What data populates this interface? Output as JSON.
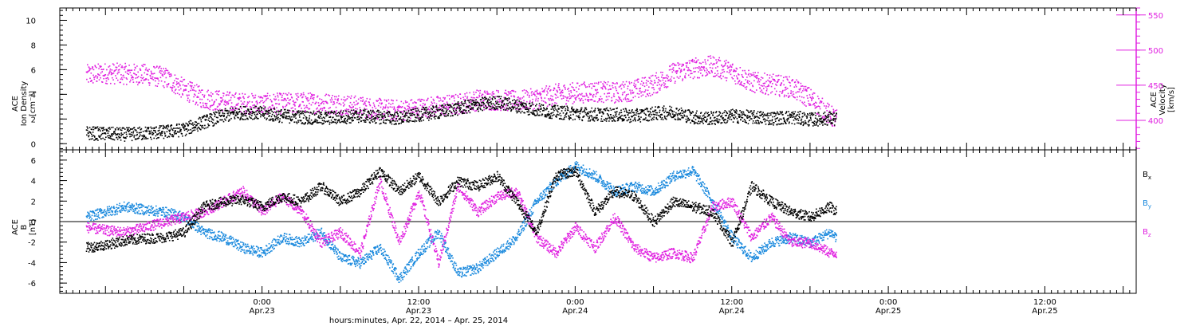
{
  "chart_data": [
    {
      "type": "scatter",
      "panel": "top",
      "left_axis": {
        "label_lines": [
          "ACE",
          "Ion Density",
          "[cm⁻³]"
        ],
        "ylim": [
          -0.5,
          11
        ],
        "ticks": [
          0,
          2,
          4,
          6,
          8,
          10
        ]
      },
      "right_axis": {
        "label_lines": [
          "ACE",
          "Velocity",
          "[km/s]"
        ],
        "ylim": [
          358,
          560
        ],
        "ticks": [
          400,
          450,
          500,
          550
        ],
        "color": "#e020e0"
      },
      "series": [
        {
          "name": "Ion Density",
          "axis": "left",
          "color": "#000000",
          "x": [
            -27,
            -24,
            -21,
            -18,
            -15,
            -12,
            -9,
            -6,
            -4,
            -2,
            0,
            3,
            6,
            9,
            12,
            15,
            18,
            21,
            24,
            27,
            30,
            33,
            36,
            39,
            42,
            45,
            48,
            51,
            54,
            57,
            60,
            63,
            66,
            69,
            72,
            75,
            78,
            81,
            84,
            87,
            88
          ],
          "y": [
            0.9,
            0.85,
            0.8,
            0.9,
            1.0,
            1.2,
            1.8,
            2.3,
            2.5,
            2.6,
            2.5,
            2.3,
            2.2,
            2.1,
            2.2,
            2.3,
            2.2,
            2.1,
            2.4,
            2.6,
            2.9,
            3.2,
            3.4,
            3.1,
            2.8,
            2.6,
            2.5,
            2.4,
            2.4,
            2.3,
            2.5,
            2.6,
            2.2,
            2.1,
            2.3,
            2.2,
            2.1,
            2.2,
            2.0,
            2.1,
            2.0
          ]
        },
        {
          "name": "Velocity",
          "axis": "right",
          "color": "#e020e0",
          "x": [
            -27,
            -24,
            -21,
            -18,
            -15,
            -12,
            -9,
            -6,
            -3,
            0,
            3,
            6,
            9,
            12,
            15,
            18,
            21,
            24,
            27,
            30,
            33,
            36,
            39,
            42,
            45,
            48,
            51,
            54,
            57,
            60,
            63,
            66,
            69,
            72,
            75,
            78,
            81,
            84,
            87,
            88
          ],
          "y": [
            465,
            468,
            467,
            466,
            462,
            445,
            432,
            428,
            425,
            424,
            425,
            426,
            425,
            424,
            420,
            417,
            415,
            418,
            421,
            424,
            430,
            430,
            428,
            432,
            438,
            440,
            442,
            440,
            444,
            452,
            468,
            475,
            478,
            470,
            455,
            452,
            448,
            432,
            408,
            402
          ]
        }
      ]
    },
    {
      "type": "scatter",
      "panel": "bottom",
      "left_axis": {
        "label_lines": [
          "ACE",
          "B",
          "[nT]"
        ],
        "ylim": [
          -7,
          7
        ],
        "ticks": [
          -6,
          -4,
          -2,
          0,
          2,
          4,
          6
        ]
      },
      "zero_line": true,
      "legend": [
        {
          "label": "B",
          "sub": "x",
          "color": "#000000"
        },
        {
          "label": "B",
          "sub": "y",
          "color": "#1888dd"
        },
        {
          "label": "B",
          "sub": "z",
          "color": "#e020e0"
        }
      ],
      "series": [
        {
          "name": "Bx",
          "color": "#000000",
          "x": [
            -27,
            -24,
            -21,
            -18,
            -15,
            -12,
            -9,
            -6,
            -3,
            0,
            3,
            6,
            9,
            12,
            15,
            18,
            21,
            24,
            27,
            30,
            33,
            36,
            39,
            42,
            45,
            48,
            51,
            54,
            57,
            60,
            63,
            66,
            69,
            72,
            75,
            78,
            81,
            84,
            87,
            88
          ],
          "y": [
            -2.5,
            -2.2,
            -1.8,
            -1.6,
            -1.5,
            -1.0,
            1.5,
            2.0,
            2.2,
            1.5,
            2.5,
            2.0,
            3.5,
            2.0,
            3.0,
            5.0,
            3.0,
            4.5,
            2.0,
            4.0,
            3.5,
            4.5,
            2.0,
            -1.0,
            4.5,
            5.0,
            1.0,
            3.0,
            2.5,
            0.0,
            2.0,
            1.5,
            1.0,
            -2.0,
            3.5,
            2.0,
            1.0,
            0.5,
            1.5,
            1.0
          ]
        },
        {
          "name": "By",
          "color": "#1888dd",
          "x": [
            -27,
            -24,
            -21,
            -18,
            -15,
            -12,
            -9,
            -6,
            -3,
            0,
            3,
            6,
            9,
            12,
            15,
            18,
            21,
            24,
            27,
            30,
            33,
            36,
            39,
            42,
            45,
            48,
            51,
            54,
            57,
            60,
            63,
            66,
            69,
            72,
            75,
            78,
            81,
            84,
            87,
            88
          ],
          "y": [
            0.5,
            1.0,
            1.5,
            1.2,
            1.0,
            0.5,
            -1.0,
            -1.5,
            -2.5,
            -3.0,
            -1.5,
            -2.0,
            -1.0,
            -3.5,
            -4.0,
            -2.5,
            -5.5,
            -3.0,
            -1.0,
            -5.0,
            -4.5,
            -3.0,
            -1.5,
            2.0,
            4.0,
            5.5,
            4.5,
            3.0,
            3.5,
            3.0,
            4.5,
            5.0,
            2.0,
            -1.5,
            -3.5,
            -2.0,
            -1.5,
            -2.0,
            -1.0,
            -1.5
          ]
        },
        {
          "name": "Bz",
          "color": "#e020e0",
          "x": [
            -27,
            -24,
            -21,
            -18,
            -15,
            -12,
            -9,
            -6,
            -3,
            0,
            3,
            6,
            9,
            12,
            15,
            18,
            21,
            24,
            27,
            30,
            33,
            36,
            39,
            42,
            45,
            48,
            51,
            54,
            57,
            60,
            63,
            66,
            69,
            72,
            75,
            78,
            81,
            84,
            87,
            88
          ],
          "y": [
            -0.5,
            -0.8,
            -1.0,
            -0.5,
            0.0,
            0.5,
            1.0,
            2.0,
            3.0,
            1.0,
            2.5,
            1.0,
            -2.0,
            -1.0,
            -3.0,
            4.0,
            -2.0,
            3.0,
            -4.0,
            3.5,
            1.0,
            2.5,
            3.0,
            -1.5,
            -3.0,
            -0.5,
            -2.5,
            0.5,
            -2.5,
            -3.5,
            -3.0,
            -3.5,
            1.5,
            2.0,
            -1.5,
            0.5,
            -2.0,
            -2.0,
            -3.0,
            -3.0
          ]
        }
      ]
    }
  ],
  "x_axis": {
    "xlim": [
      -31,
      134
    ],
    "ticks": [
      {
        "x": 0,
        "time": "0:00",
        "date": "Apr.23"
      },
      {
        "x": 24,
        "time": "12:00",
        "date": "Apr.23"
      },
      {
        "x": 48,
        "time": "0:00",
        "date": "Apr.24"
      },
      {
        "x": 72,
        "time": "12:00",
        "date": "Apr.24"
      },
      {
        "x": 96,
        "time": "0:00",
        "date": "Apr.25"
      },
      {
        "x": 120,
        "time": "12:00",
        "date": "Apr.25"
      }
    ],
    "label": "hours:minutes, Apr. 22, 2014 – Apr. 25, 2014"
  }
}
